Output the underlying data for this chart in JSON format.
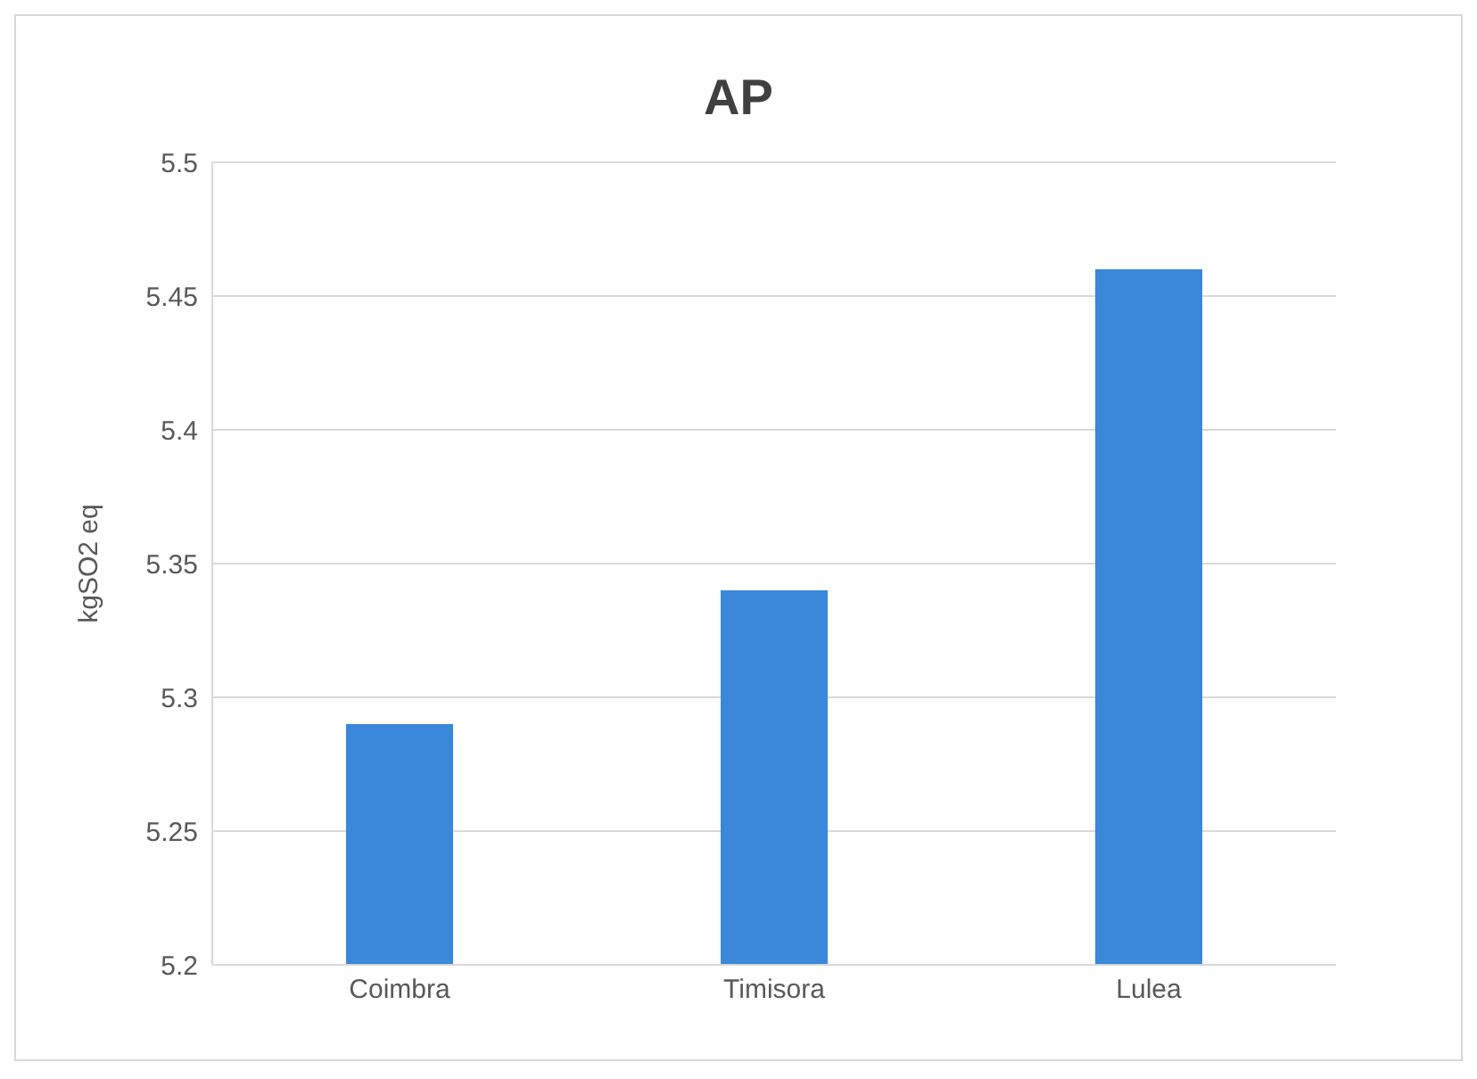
{
  "chart_data": {
    "type": "bar",
    "title": "AP",
    "ylabel": "kgSO2 eq",
    "categories": [
      "Coimbra",
      "Timisora",
      "Lulea"
    ],
    "values": [
      5.29,
      5.34,
      5.46
    ],
    "color": "#3b87d9",
    "ylim": [
      5.2,
      5.5
    ],
    "yticks": [
      5.2,
      5.25,
      5.3,
      5.35,
      5.4,
      5.45,
      5.5
    ],
    "grid": "y"
  }
}
